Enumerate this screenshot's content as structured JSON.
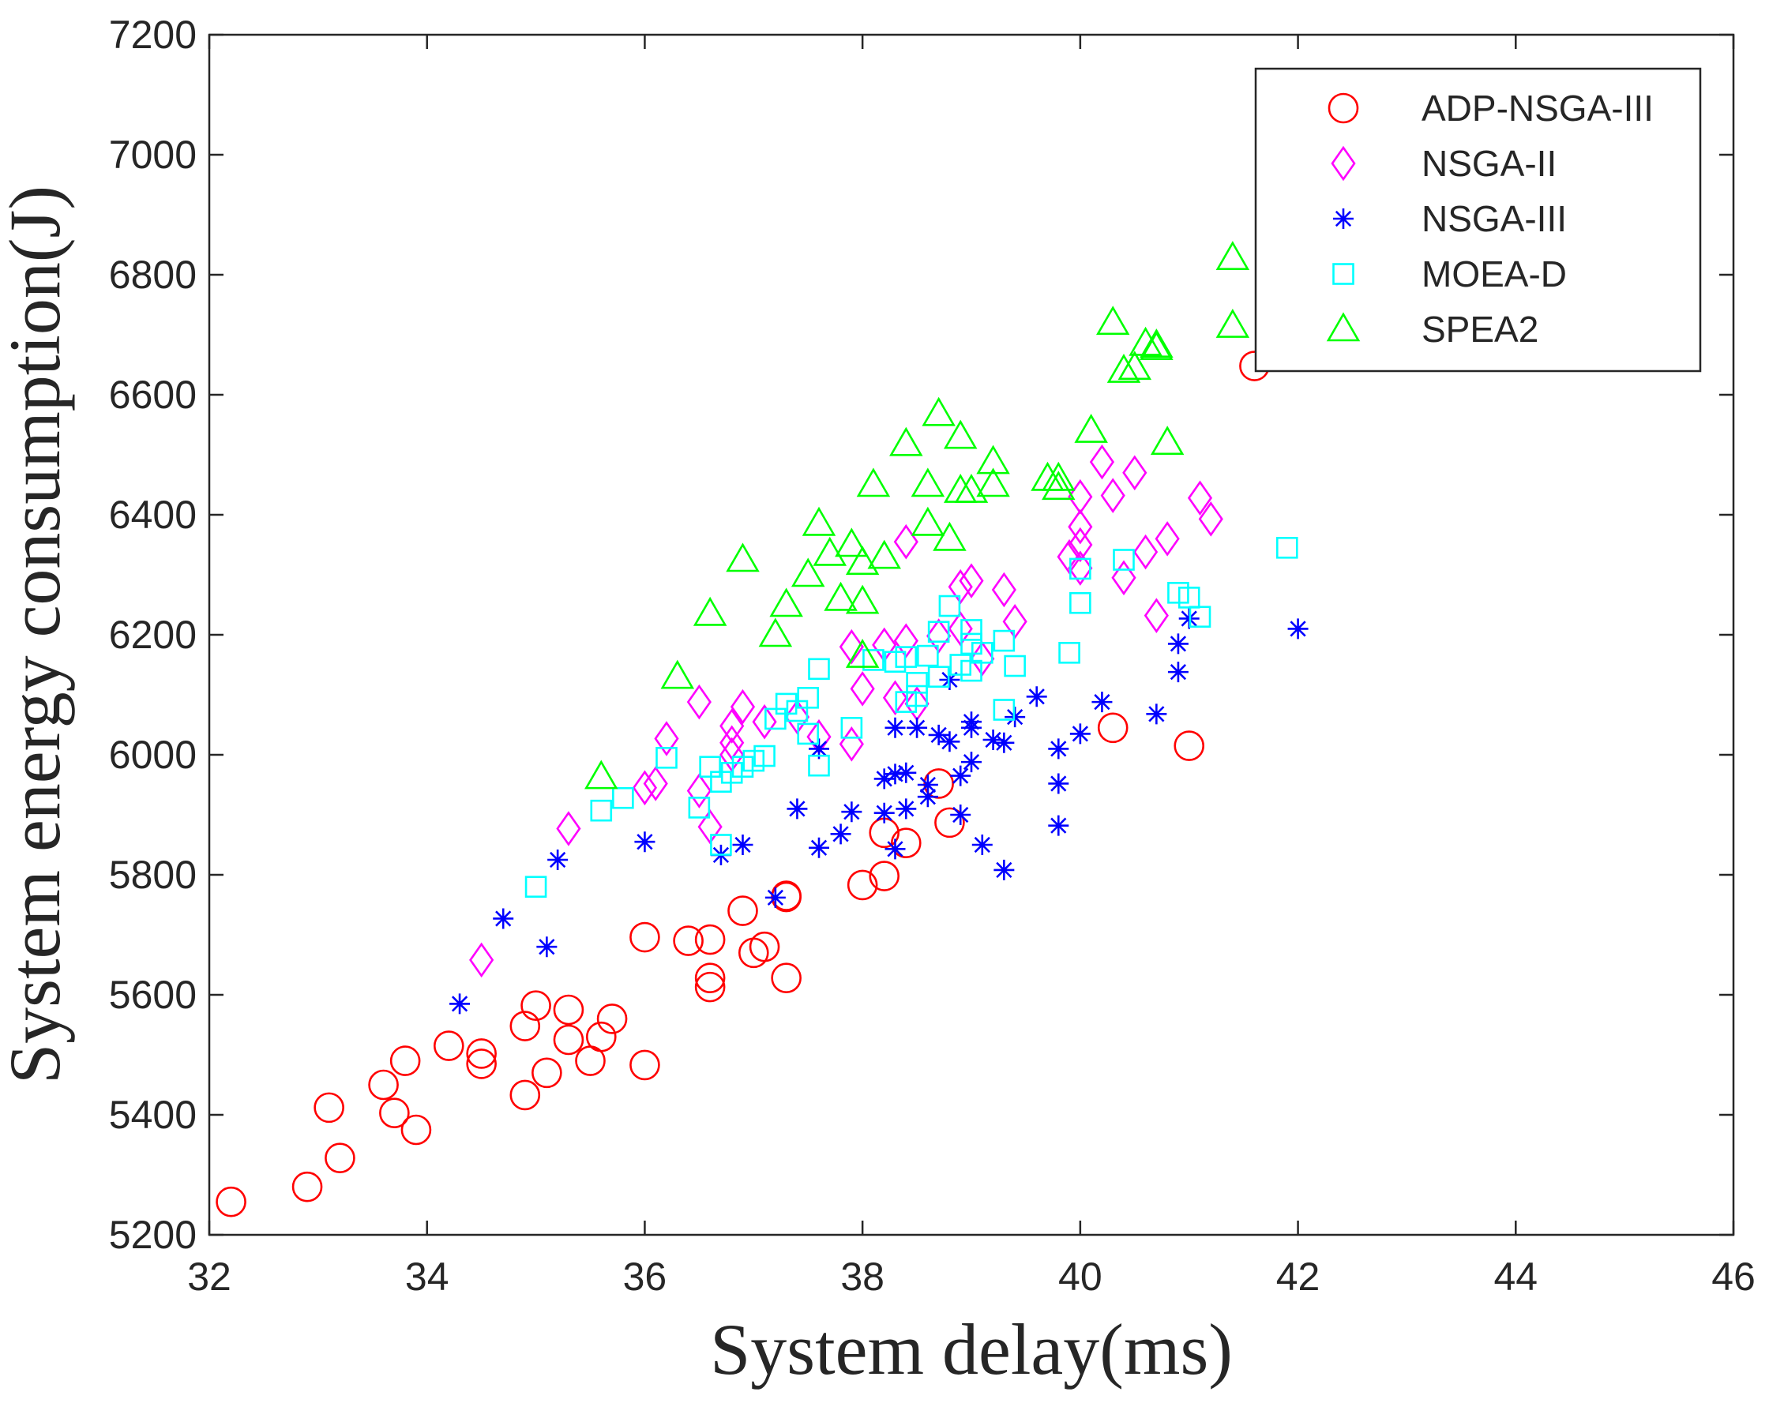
{
  "chart_data": {
    "type": "scatter",
    "title": "",
    "xlabel": "System delay(ms)",
    "ylabel": "System energy consumption(J)",
    "xlim": [
      32,
      46
    ],
    "ylim": [
      5200,
      7200
    ],
    "xticks": [
      32,
      34,
      36,
      38,
      40,
      42,
      44,
      46
    ],
    "yticks": [
      5200,
      5400,
      5600,
      5800,
      6000,
      6200,
      6400,
      6600,
      6800,
      7000,
      7200
    ],
    "grid": false,
    "legend_position": "top-right",
    "series": [
      {
        "name": "ADP-NSGA-III",
        "marker": "circle",
        "color": "#ff0000",
        "points": [
          [
            32.2,
            5255
          ],
          [
            32.9,
            5280
          ],
          [
            33.1,
            5412
          ],
          [
            33.2,
            5328
          ],
          [
            33.6,
            5450
          ],
          [
            33.7,
            5403
          ],
          [
            33.8,
            5490
          ],
          [
            33.9,
            5375
          ],
          [
            34.2,
            5515
          ],
          [
            34.5,
            5485
          ],
          [
            34.5,
            5502
          ],
          [
            34.9,
            5433
          ],
          [
            34.9,
            5548
          ],
          [
            35.0,
            5582
          ],
          [
            35.1,
            5470
          ],
          [
            35.3,
            5575
          ],
          [
            35.3,
            5525
          ],
          [
            35.5,
            5490
          ],
          [
            35.6,
            5530
          ],
          [
            35.7,
            5560
          ],
          [
            36.0,
            5483
          ],
          [
            36.0,
            5696
          ],
          [
            36.4,
            5690
          ],
          [
            36.6,
            5692
          ],
          [
            36.6,
            5613
          ],
          [
            36.6,
            5628
          ],
          [
            36.9,
            5740
          ],
          [
            37.0,
            5670
          ],
          [
            37.1,
            5680
          ],
          [
            37.3,
            5763
          ],
          [
            37.3,
            5765
          ],
          [
            37.3,
            5628
          ],
          [
            38.0,
            5783
          ],
          [
            38.2,
            5798
          ],
          [
            38.2,
            5870
          ],
          [
            38.4,
            5853
          ],
          [
            38.7,
            5952
          ],
          [
            38.8,
            5887
          ],
          [
            40.3,
            6045
          ],
          [
            41.0,
            6015
          ],
          [
            41.6,
            6648
          ]
        ]
      },
      {
        "name": "NSGA-II",
        "marker": "diamond",
        "color": "#ff00ff",
        "points": [
          [
            34.5,
            5658
          ],
          [
            35.3,
            5877
          ],
          [
            36.0,
            5945
          ],
          [
            36.1,
            5952
          ],
          [
            36.2,
            6027
          ],
          [
            36.5,
            5940
          ],
          [
            36.5,
            6088
          ],
          [
            36.6,
            5880
          ],
          [
            36.8,
            6048
          ],
          [
            36.8,
            6000
          ],
          [
            36.9,
            6080
          ],
          [
            36.8,
            6020
          ],
          [
            37.1,
            6055
          ],
          [
            37.4,
            6063
          ],
          [
            37.6,
            6030
          ],
          [
            37.9,
            6018
          ],
          [
            37.9,
            6180
          ],
          [
            38.0,
            6110
          ],
          [
            38.2,
            6183
          ],
          [
            38.3,
            6095
          ],
          [
            38.4,
            6355
          ],
          [
            38.4,
            6190
          ],
          [
            38.5,
            6085
          ],
          [
            38.7,
            6198
          ],
          [
            38.9,
            6210
          ],
          [
            38.9,
            6280
          ],
          [
            39.0,
            6290
          ],
          [
            39.1,
            6160
          ],
          [
            39.3,
            6275
          ],
          [
            39.4,
            6222
          ],
          [
            39.9,
            6330
          ],
          [
            40.0,
            6430
          ],
          [
            40.0,
            6380
          ],
          [
            40.0,
            6350
          ],
          [
            40.2,
            6488
          ],
          [
            40.3,
            6432
          ],
          [
            40.4,
            6295
          ],
          [
            40.5,
            6470
          ],
          [
            40.6,
            6338
          ],
          [
            40.7,
            6232
          ],
          [
            40.8,
            6360
          ],
          [
            41.1,
            6428
          ],
          [
            41.2,
            6393
          ],
          [
            40.0,
            6311
          ]
        ]
      },
      {
        "name": "NSGA-III",
        "marker": "asterisk",
        "color": "#0000ff",
        "points": [
          [
            34.3,
            5585
          ],
          [
            34.7,
            5727
          ],
          [
            35.1,
            5680
          ],
          [
            35.2,
            5825
          ],
          [
            36.0,
            5855
          ],
          [
            36.7,
            5833
          ],
          [
            36.9,
            5850
          ],
          [
            37.2,
            5762
          ],
          [
            37.4,
            5910
          ],
          [
            37.6,
            5845
          ],
          [
            37.6,
            6010
          ],
          [
            37.8,
            5868
          ],
          [
            37.9,
            5905
          ],
          [
            38.2,
            5903
          ],
          [
            38.2,
            5960
          ],
          [
            38.3,
            5968
          ],
          [
            38.3,
            5843
          ],
          [
            38.3,
            6045
          ],
          [
            38.4,
            5910
          ],
          [
            38.4,
            5970
          ],
          [
            38.5,
            6045
          ],
          [
            38.6,
            5930
          ],
          [
            38.6,
            5950
          ],
          [
            38.7,
            6033
          ],
          [
            38.8,
            6125
          ],
          [
            38.8,
            6022
          ],
          [
            38.9,
            5900
          ],
          [
            38.9,
            5965
          ],
          [
            39.0,
            5988
          ],
          [
            39.0,
            6045
          ],
          [
            39.0,
            6055
          ],
          [
            39.1,
            5850
          ],
          [
            39.2,
            6025
          ],
          [
            39.3,
            6020
          ],
          [
            39.3,
            5808
          ],
          [
            39.4,
            6063
          ],
          [
            39.6,
            6097
          ],
          [
            39.8,
            5882
          ],
          [
            39.8,
            5952
          ],
          [
            39.8,
            6010
          ],
          [
            40.0,
            6035
          ],
          [
            40.2,
            6088
          ],
          [
            40.7,
            6068
          ],
          [
            40.9,
            6138
          ],
          [
            40.9,
            6185
          ],
          [
            41.0,
            6227
          ],
          [
            42.0,
            6210
          ]
        ]
      },
      {
        "name": "MOEA-D",
        "marker": "square",
        "color": "#00ffff",
        "points": [
          [
            35.0,
            5780
          ],
          [
            35.6,
            5907
          ],
          [
            35.8,
            5928
          ],
          [
            36.2,
            5995
          ],
          [
            36.5,
            5912
          ],
          [
            36.6,
            5980
          ],
          [
            36.7,
            5955
          ],
          [
            36.7,
            5850
          ],
          [
            36.8,
            5970
          ],
          [
            36.9,
            5980
          ],
          [
            37.0,
            5990
          ],
          [
            37.1,
            5998
          ],
          [
            37.2,
            6060
          ],
          [
            37.3,
            6085
          ],
          [
            37.4,
            6073
          ],
          [
            37.5,
            6095
          ],
          [
            37.5,
            6035
          ],
          [
            37.6,
            5982
          ],
          [
            37.6,
            6143
          ],
          [
            37.9,
            6045
          ],
          [
            38.1,
            6158
          ],
          [
            38.3,
            6155
          ],
          [
            38.4,
            6088
          ],
          [
            38.4,
            6163
          ],
          [
            38.5,
            6120
          ],
          [
            38.5,
            6098
          ],
          [
            38.6,
            6165
          ],
          [
            38.7,
            6205
          ],
          [
            38.7,
            6130
          ],
          [
            38.8,
            6248
          ],
          [
            38.9,
            6150
          ],
          [
            39.0,
            6185
          ],
          [
            39.0,
            6140
          ],
          [
            39.0,
            6208
          ],
          [
            39.1,
            6170
          ],
          [
            39.3,
            6190
          ],
          [
            39.3,
            6075
          ],
          [
            39.4,
            6148
          ],
          [
            39.9,
            6170
          ],
          [
            40.0,
            6310
          ],
          [
            40.0,
            6253
          ],
          [
            40.4,
            6325
          ],
          [
            40.9,
            6270
          ],
          [
            41.0,
            6262
          ],
          [
            41.1,
            6230
          ],
          [
            41.9,
            6345
          ]
        ]
      },
      {
        "name": "SPEA2",
        "marker": "triangle",
        "color": "#00ff00",
        "points": [
          [
            35.6,
            5963
          ],
          [
            36.3,
            6130
          ],
          [
            36.6,
            6235
          ],
          [
            36.9,
            6325
          ],
          [
            37.2,
            6200
          ],
          [
            37.3,
            6250
          ],
          [
            37.5,
            6300
          ],
          [
            37.6,
            6385
          ],
          [
            37.7,
            6335
          ],
          [
            37.8,
            6260
          ],
          [
            37.9,
            6350
          ],
          [
            38.0,
            6320
          ],
          [
            38.0,
            6255
          ],
          [
            38.0,
            6165
          ],
          [
            38.1,
            6450
          ],
          [
            38.2,
            6330
          ],
          [
            38.4,
            6518
          ],
          [
            38.6,
            6450
          ],
          [
            38.6,
            6385
          ],
          [
            38.7,
            6568
          ],
          [
            38.8,
            6360
          ],
          [
            38.9,
            6530
          ],
          [
            38.9,
            6440
          ],
          [
            39.0,
            6440
          ],
          [
            39.2,
            6488
          ],
          [
            39.2,
            6450
          ],
          [
            39.7,
            6460
          ],
          [
            39.8,
            6445
          ],
          [
            39.8,
            6460
          ],
          [
            40.1,
            6540
          ],
          [
            40.3,
            6720
          ],
          [
            40.4,
            6640
          ],
          [
            40.5,
            6645
          ],
          [
            40.6,
            6685
          ],
          [
            40.7,
            6682
          ],
          [
            40.7,
            6678
          ],
          [
            40.8,
            6520
          ],
          [
            41.4,
            6828
          ],
          [
            41.4,
            6715
          ]
        ]
      }
    ]
  }
}
